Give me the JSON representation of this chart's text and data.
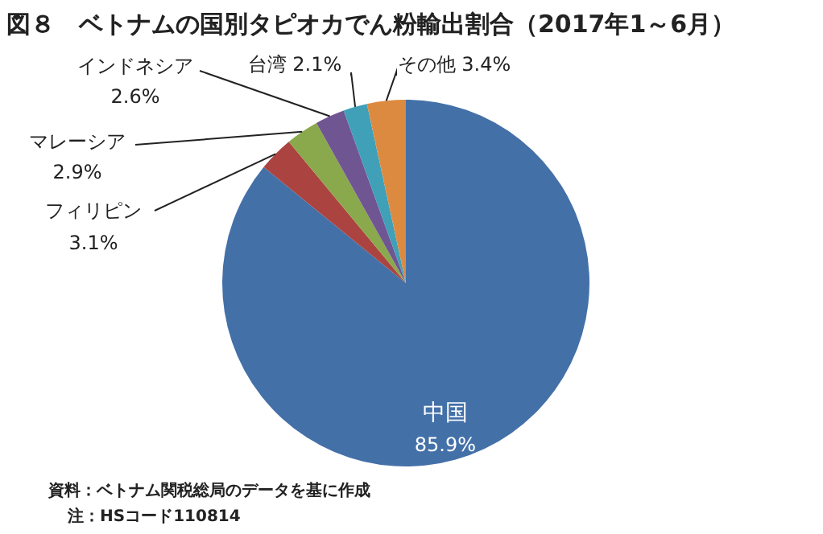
{
  "chart_data": {
    "type": "pie",
    "title": "図８　ベトナムの国別タピオカでん粉輸出割合（2017年1～6月）",
    "categories": [
      "中国",
      "フィリピン",
      "マレーシア",
      "インドネシア",
      "台湾",
      "その他"
    ],
    "values": [
      85.9,
      3.1,
      2.9,
      2.6,
      2.1,
      3.4
    ],
    "value_labels": [
      "85.9%",
      "3.1%",
      "2.9%",
      "2.6%",
      "2.1%",
      "3.4%"
    ],
    "colors": [
      "#4470a8",
      "#ab4440",
      "#8aa84c",
      "#6f5693",
      "#3fa0b8",
      "#dd8a41"
    ],
    "legend": false,
    "annotations": [
      "資料：ベトナム関税総局のデータを基に作成",
      "注：HSコード110814"
    ]
  }
}
